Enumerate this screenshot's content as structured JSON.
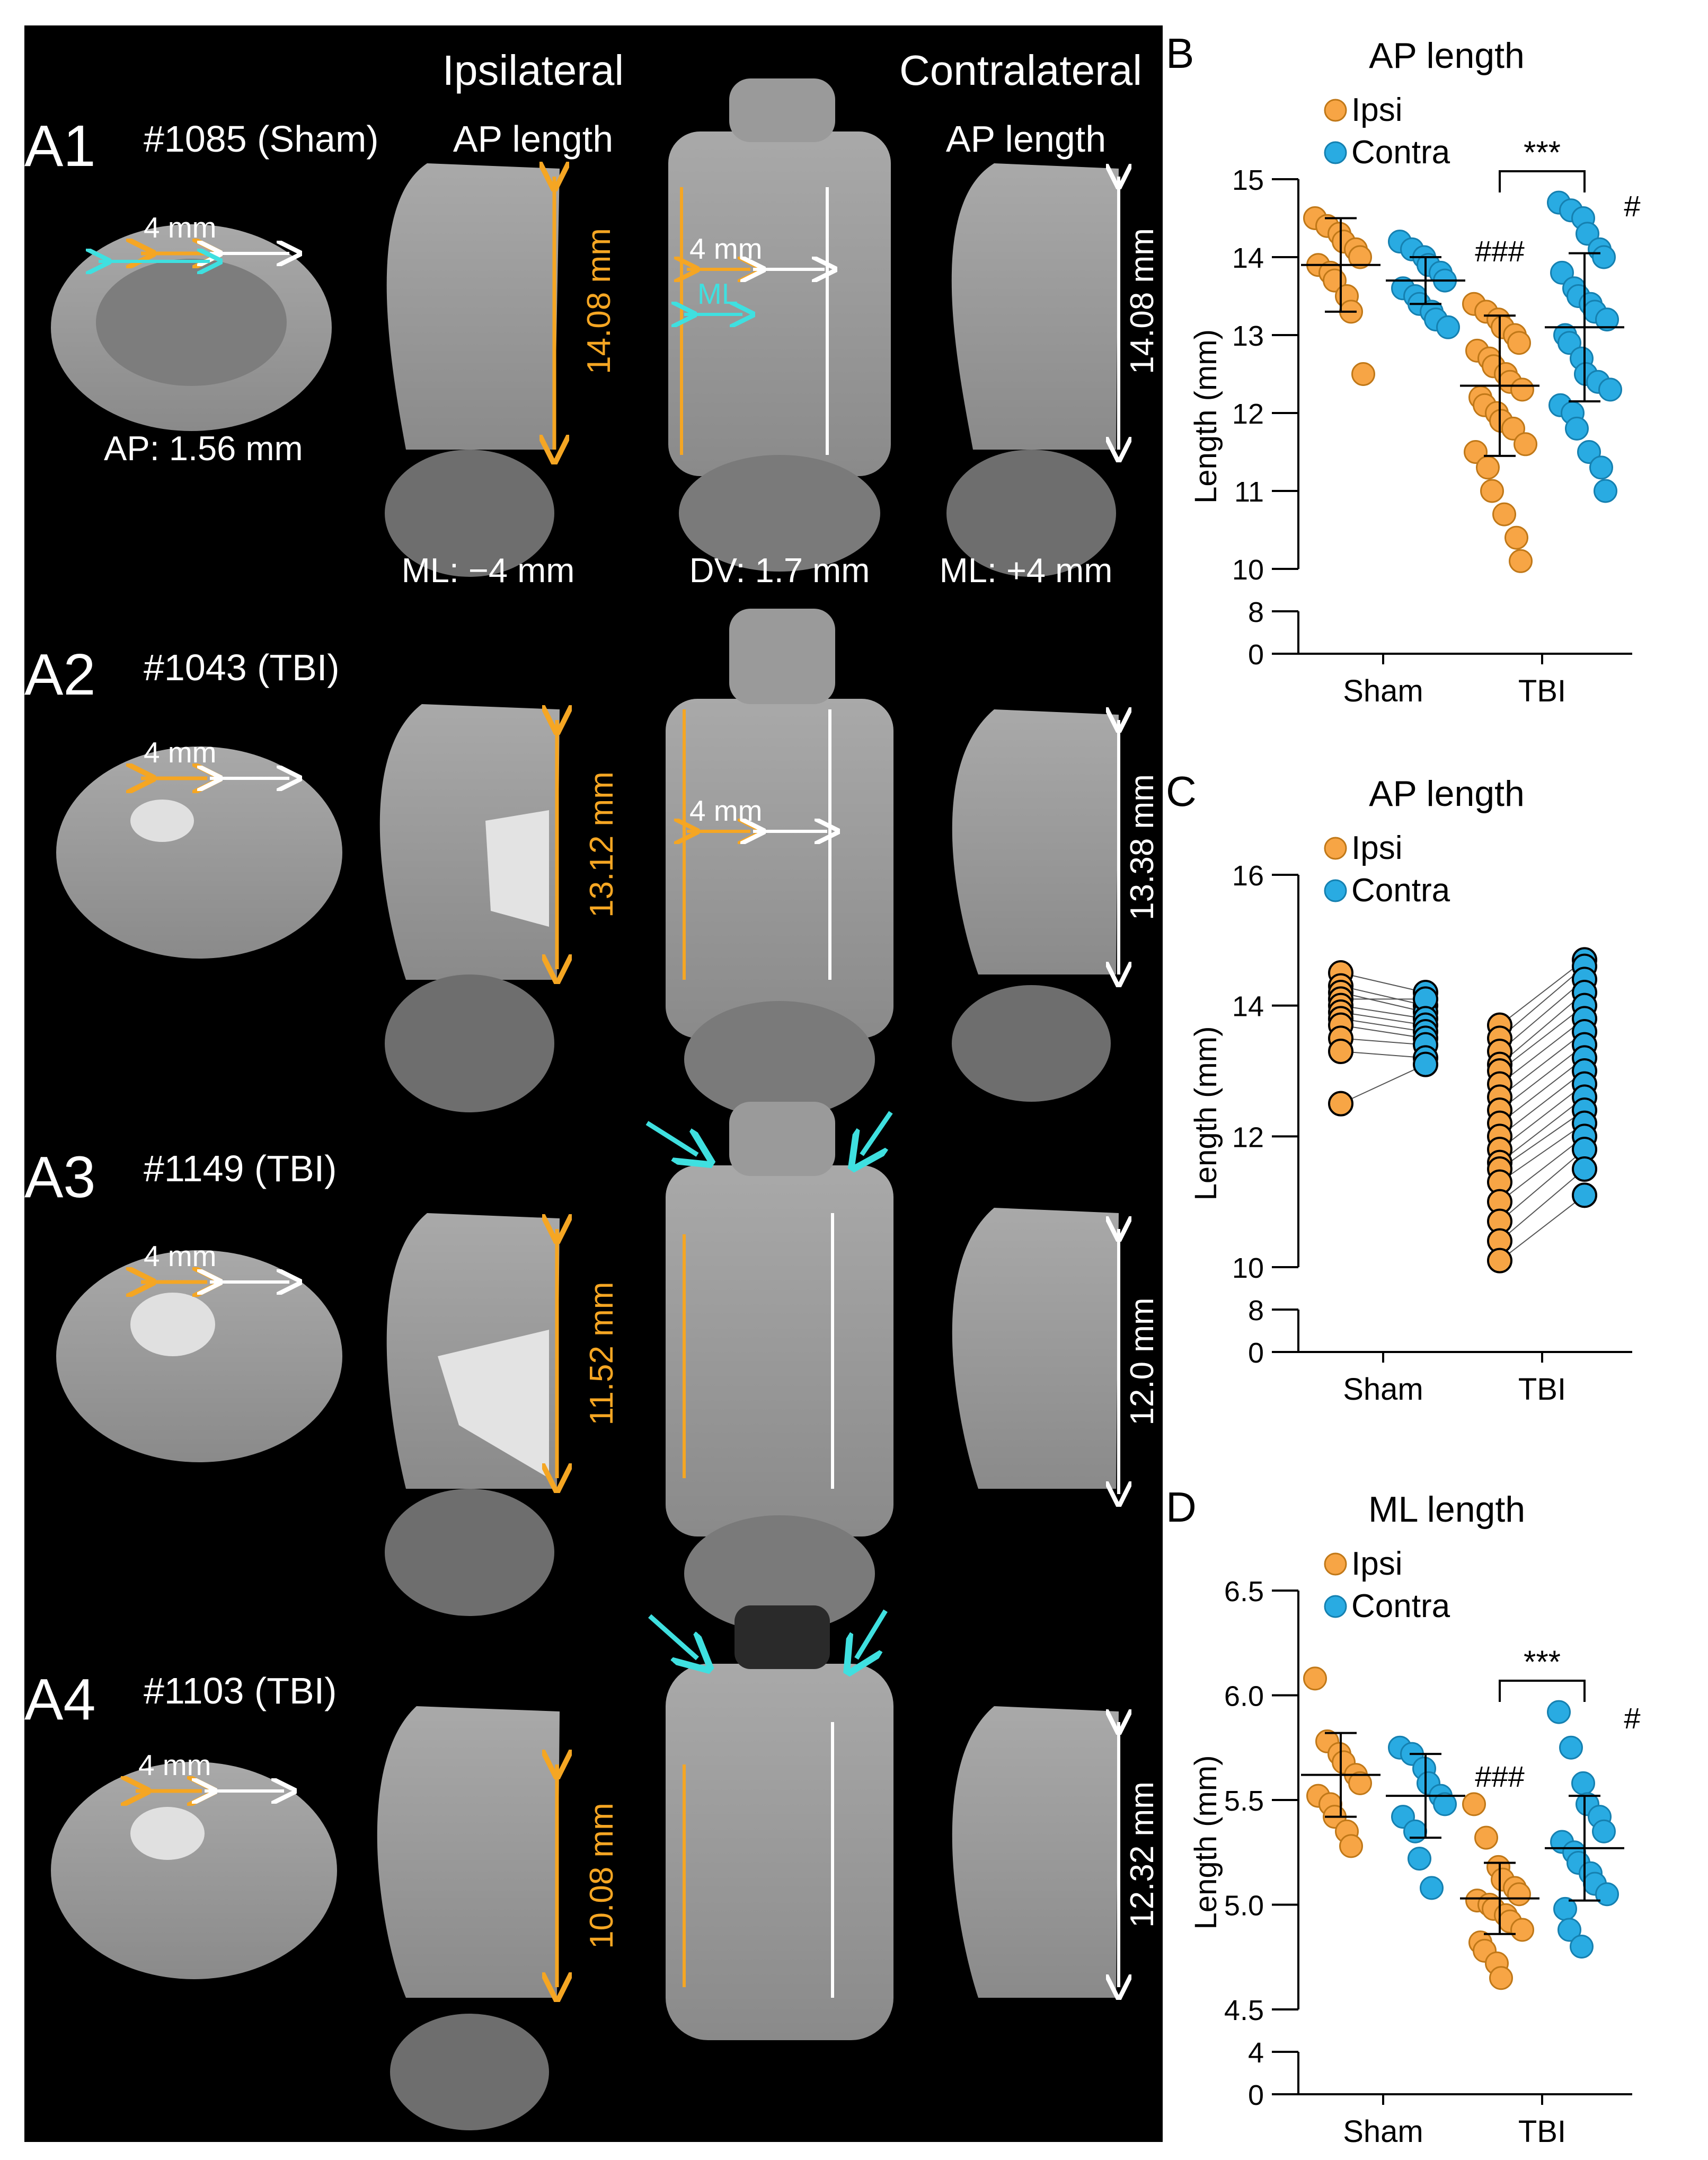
{
  "figure": {
    "header": {
      "ipsi": "Ipsilateral",
      "contra": "Contralateral"
    },
    "rows": [
      {
        "panel": "A1",
        "subject": "#1085 (Sham)",
        "ipsi_ap": "14.08 mm",
        "contra_ap": "14.08 mm",
        "scale": "4 mm",
        "ml_tag": "ML",
        "ap_label": "AP: 1.56 mm",
        "col_ipsi": "AP length",
        "col_contra": "AP length",
        "ml_minus": "ML: −4 mm",
        "dv": "DV: 1.7 mm",
        "ml_plus": "ML: +4 mm"
      },
      {
        "panel": "A2",
        "subject": "#1043 (TBI)",
        "ipsi_ap": "13.12 mm",
        "contra_ap": "13.38 mm",
        "scale": "4 mm",
        "scale2": "4 mm"
      },
      {
        "panel": "A3",
        "subject": "#1149 (TBI)",
        "ipsi_ap": "11.52 mm",
        "contra_ap": "12.0 mm",
        "scale": "4 mm"
      },
      {
        "panel": "A4",
        "subject": "#1103 (TBI)",
        "ipsi_ap": "10.08 mm",
        "contra_ap": "12.32 mm",
        "scale": "4 mm"
      }
    ]
  },
  "colors": {
    "ipsi": "#F7A545",
    "contra": "#29ABE2",
    "orange_mark": "#F5A623",
    "cyan_mark": "#3FE0E0"
  },
  "chart_data": [
    {
      "panel": "B",
      "type": "scatter",
      "title": "AP length",
      "ylabel": "Length (mm)",
      "categories": [
        "Sham",
        "TBI"
      ],
      "legend": [
        "Ipsi",
        "Contra"
      ],
      "ylim_upper": [
        10,
        15
      ],
      "ylim_lower": [
        0,
        8
      ],
      "yticks": [
        "15",
        "14",
        "13",
        "12",
        "11",
        "10",
        "8",
        "0"
      ],
      "annotations": {
        "sig_bracket": "***",
        "ipsi_vs_sham": "###",
        "contra_vs_sham": "#"
      },
      "series": [
        {
          "name": "Ipsi",
          "group": "Sham",
          "mean": 13.9,
          "sd": 0.6,
          "values": [
            14.5,
            14.4,
            14.3,
            14.2,
            14.1,
            14.0,
            13.9,
            13.8,
            13.7,
            13.5,
            13.3,
            12.5
          ]
        },
        {
          "name": "Contra",
          "group": "Sham",
          "mean": 13.7,
          "sd": 0.3,
          "values": [
            14.2,
            14.1,
            14.0,
            13.9,
            13.8,
            13.7,
            13.6,
            13.5,
            13.4,
            13.3,
            13.2,
            13.1
          ]
        },
        {
          "name": "Ipsi",
          "group": "TBI",
          "mean": 12.35,
          "sd": 0.9,
          "values": [
            13.4,
            13.3,
            13.2,
            13.1,
            13.0,
            12.9,
            12.8,
            12.7,
            12.6,
            12.5,
            12.4,
            12.3,
            12.2,
            12.1,
            12.0,
            11.9,
            11.8,
            11.6,
            11.5,
            11.3,
            11.0,
            10.7,
            10.4,
            10.1
          ]
        },
        {
          "name": "Contra",
          "group": "TBI",
          "mean": 13.1,
          "sd": 0.95,
          "values": [
            14.7,
            14.6,
            14.5,
            14.3,
            14.1,
            14.0,
            13.8,
            13.6,
            13.5,
            13.4,
            13.3,
            13.2,
            13.0,
            12.9,
            12.7,
            12.5,
            12.4,
            12.3,
            12.1,
            12.0,
            11.8,
            11.5,
            11.3,
            11.0
          ]
        }
      ]
    },
    {
      "panel": "C",
      "type": "scatter",
      "title": "AP length",
      "ylabel": "Length (mm)",
      "categories": [
        "Sham",
        "TBI"
      ],
      "legend": [
        "Ipsi",
        "Contra"
      ],
      "ylim_upper": [
        10,
        16
      ],
      "ylim_lower": [
        0,
        8
      ],
      "yticks": [
        "16",
        "14",
        "12",
        "10",
        "8",
        "0"
      ],
      "paired": true,
      "pairs_sham": [
        [
          14.5,
          14.2
        ],
        [
          14.3,
          14.0
        ],
        [
          14.2,
          13.9
        ],
        [
          14.1,
          14.1
        ],
        [
          14.0,
          13.8
        ],
        [
          13.9,
          13.7
        ],
        [
          13.8,
          13.6
        ],
        [
          13.7,
          13.5
        ],
        [
          13.5,
          13.4
        ],
        [
          13.3,
          13.2
        ],
        [
          12.5,
          13.1
        ]
      ],
      "pairs_tbi": [
        [
          13.7,
          14.7
        ],
        [
          13.5,
          14.6
        ],
        [
          13.3,
          14.4
        ],
        [
          13.1,
          14.2
        ],
        [
          13.0,
          14.0
        ],
        [
          12.8,
          13.8
        ],
        [
          12.6,
          13.6
        ],
        [
          12.4,
          13.4
        ],
        [
          12.2,
          13.2
        ],
        [
          12.0,
          13.0
        ],
        [
          11.8,
          12.8
        ],
        [
          11.6,
          12.6
        ],
        [
          11.5,
          12.4
        ],
        [
          11.3,
          12.2
        ],
        [
          11.0,
          12.0
        ],
        [
          10.7,
          11.8
        ],
        [
          10.4,
          11.5
        ],
        [
          10.1,
          11.1
        ]
      ]
    },
    {
      "panel": "D",
      "type": "scatter",
      "title": "ML length",
      "ylabel": "Length (mm)",
      "categories": [
        "Sham",
        "TBI"
      ],
      "legend": [
        "Ipsi",
        "Contra"
      ],
      "ylim_upper": [
        4.5,
        6.5
      ],
      "ylim_lower": [
        0,
        4
      ],
      "yticks": [
        "6.5",
        "6.0",
        "5.5",
        "5.0",
        "4.5",
        "4",
        "0"
      ],
      "annotations": {
        "sig_bracket": "***",
        "ipsi_vs_sham": "###",
        "contra_vs_sham": "#"
      },
      "series": [
        {
          "name": "Ipsi",
          "group": "Sham",
          "mean": 5.62,
          "sd": 0.2,
          "values": [
            6.08,
            5.78,
            5.72,
            5.68,
            5.62,
            5.58,
            5.52,
            5.48,
            5.42,
            5.35,
            5.28
          ]
        },
        {
          "name": "Contra",
          "group": "Sham",
          "mean": 5.52,
          "sd": 0.2,
          "values": [
            5.75,
            5.72,
            5.65,
            5.58,
            5.52,
            5.48,
            5.42,
            5.35,
            5.22,
            5.08
          ]
        },
        {
          "name": "Ipsi",
          "group": "TBI",
          "mean": 5.03,
          "sd": 0.17,
          "values": [
            5.48,
            5.32,
            5.18,
            5.12,
            5.08,
            5.05,
            5.02,
            5.0,
            4.98,
            4.95,
            4.92,
            4.88,
            4.82,
            4.78,
            4.72,
            4.65
          ]
        },
        {
          "name": "Contra",
          "group": "TBI",
          "mean": 5.27,
          "sd": 0.25,
          "values": [
            5.92,
            5.75,
            5.58,
            5.48,
            5.42,
            5.35,
            5.3,
            5.25,
            5.2,
            5.15,
            5.1,
            5.05,
            4.98,
            4.88,
            4.8
          ]
        }
      ]
    }
  ]
}
